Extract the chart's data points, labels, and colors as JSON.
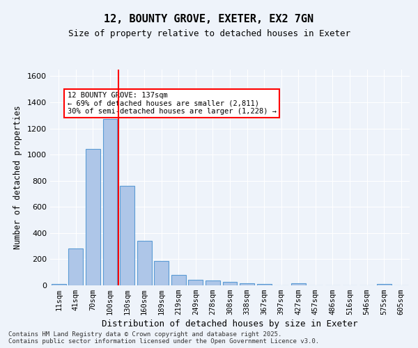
{
  "title1": "12, BOUNTY GROVE, EXETER, EX2 7GN",
  "title2": "Size of property relative to detached houses in Exeter",
  "xlabel": "Distribution of detached houses by size in Exeter",
  "ylabel": "Number of detached properties",
  "categories": [
    "11sqm",
    "41sqm",
    "70sqm",
    "100sqm",
    "130sqm",
    "160sqm",
    "189sqm",
    "219sqm",
    "249sqm",
    "278sqm",
    "308sqm",
    "338sqm",
    "367sqm",
    "397sqm",
    "427sqm",
    "457sqm",
    "486sqm",
    "516sqm",
    "546sqm",
    "575sqm",
    "605sqm"
  ],
  "values": [
    10,
    280,
    1045,
    1270,
    760,
    340,
    185,
    80,
    40,
    38,
    25,
    15,
    10,
    0,
    15,
    0,
    0,
    0,
    0,
    8,
    0
  ],
  "bar_color": "#aec6e8",
  "bar_edge_color": "#5b9bd5",
  "vline_x": 4.5,
  "vline_color": "red",
  "annotation_text": "12 BOUNTY GROVE: 137sqm\n← 69% of detached houses are smaller (2,811)\n30% of semi-detached houses are larger (1,228) →",
  "annotation_box_color": "#ffffff",
  "annotation_box_edge": "red",
  "ylim": [
    0,
    1650
  ],
  "yticks": [
    0,
    200,
    400,
    600,
    800,
    1000,
    1200,
    1400,
    1600
  ],
  "footer": "Contains HM Land Registry data © Crown copyright and database right 2025.\nContains public sector information licensed under the Open Government Licence v3.0.",
  "bg_color": "#eef3fa",
  "plot_bg_color": "#eef3fa"
}
